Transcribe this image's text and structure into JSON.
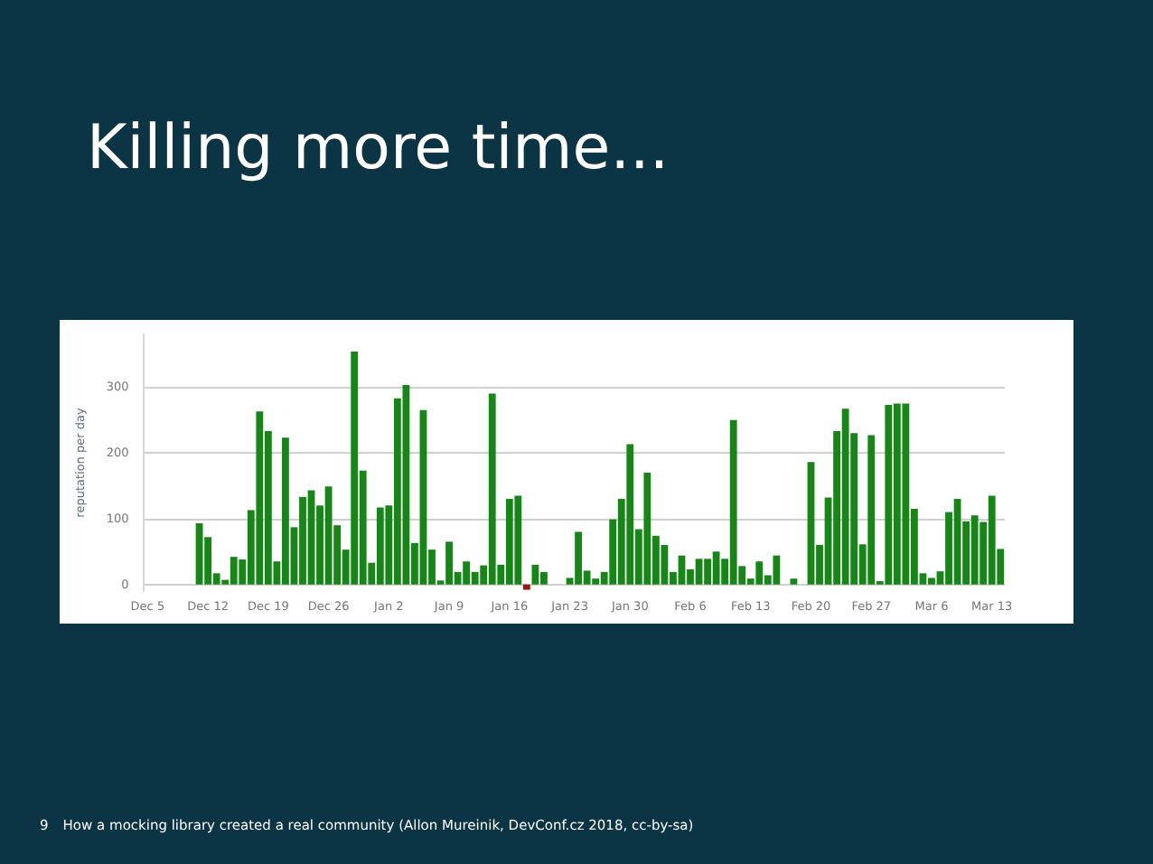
{
  "chart_data": {
    "type": "bar",
    "title": "Killing more time...",
    "ylabel": "reputation per day",
    "annotations": [
      "9",
      "How a mocking library created a real community (Allon Mureinik, DevConf.cz 2018, cc-by-sa)"
    ],
    "categories": [
      "Dec 5",
      null,
      null,
      null,
      null,
      null,
      null,
      "Dec 12",
      null,
      null,
      null,
      null,
      null,
      null,
      "Dec 19",
      null,
      null,
      null,
      null,
      null,
      null,
      "Dec 26",
      null,
      null,
      null,
      null,
      null,
      null,
      "Jan 2",
      null,
      null,
      null,
      null,
      null,
      null,
      "Jan 9",
      null,
      null,
      null,
      null,
      null,
      null,
      "Jan 16",
      null,
      null,
      null,
      null,
      null,
      null,
      "Jan 23",
      null,
      null,
      null,
      null,
      null,
      null,
      "Jan 30",
      null,
      null,
      null,
      null,
      null,
      null,
      "Feb 6",
      null,
      null,
      null,
      null,
      null,
      null,
      "Feb 13",
      null,
      null,
      null,
      null,
      null,
      null,
      "Feb 20",
      null,
      null,
      null,
      null,
      null,
      null,
      "Feb 27",
      null,
      null,
      null,
      null,
      null,
      null,
      "Mar 6",
      null,
      null,
      null,
      null,
      null,
      null,
      "Mar 13",
      null
    ],
    "values": [
      null,
      null,
      null,
      null,
      null,
      null,
      93,
      72,
      17,
      7,
      42,
      38,
      113,
      263,
      233,
      35,
      223,
      87,
      133,
      143,
      120,
      149,
      90,
      53,
      354,
      173,
      33,
      117,
      120,
      283,
      303,
      63,
      265,
      53,
      6,
      65,
      19,
      35,
      19,
      29,
      290,
      30,
      130,
      135,
      -8,
      30,
      19,
      null,
      null,
      10,
      80,
      21,
      9,
      19,
      99,
      130,
      213,
      84,
      170,
      74,
      60,
      19,
      44,
      23,
      39,
      39,
      50,
      39,
      250,
      28,
      9,
      35,
      14,
      44,
      null,
      9,
      null,
      186,
      60,
      132,
      233,
      267,
      230,
      61,
      227,
      5,
      273,
      275,
      275,
      115,
      17,
      10,
      20,
      110,
      130,
      96,
      105,
      95,
      135,
      54
    ],
    "colors": [
      "#168616",
      "#168616",
      "#168616",
      "#168616",
      "#168616",
      "#168616",
      "#168616",
      "#168616",
      "#168616",
      "#168616",
      "#168616",
      "#168616",
      "#168616",
      "#168616",
      "#168616",
      "#168616",
      "#168616",
      "#168616",
      "#168616",
      "#168616",
      "#168616",
      "#168616",
      "#168616",
      "#168616",
      "#168616",
      "#168616",
      "#168616",
      "#168616",
      "#168616",
      "#168616",
      "#168616",
      "#168616",
      "#168616",
      "#168616",
      "#168616",
      "#168616",
      "#168616",
      "#168616",
      "#168616",
      "#168616",
      "#168616",
      "#168616",
      "#168616",
      "#168616",
      "#9e1212",
      "#168616",
      "#168616",
      "#168616",
      "#168616",
      "#168616",
      "#168616",
      "#168616",
      "#168616",
      "#168616",
      "#168616",
      "#168616",
      "#168616",
      "#168616",
      "#168616",
      "#168616",
      "#168616",
      "#168616",
      "#168616",
      "#168616",
      "#168616",
      "#168616",
      "#168616",
      "#168616",
      "#168616",
      "#168616",
      "#168616",
      "#168616",
      "#168616",
      "#168616",
      "#168616",
      "#168616",
      "#168616",
      "#168616",
      "#168616",
      "#168616",
      "#168616",
      "#168616",
      "#168616",
      "#168616",
      "#168616",
      "#168616",
      "#168616",
      "#168616",
      "#168616",
      "#168616",
      "#168616",
      "#168616",
      "#168616",
      "#168616",
      "#168616",
      "#168616",
      "#168616",
      "#168616",
      "#168616",
      "#168616"
    ],
    "ylim": [
      -10,
      380
    ],
    "yticks": [
      0,
      100,
      200,
      300
    ],
    "grid": "y"
  }
}
